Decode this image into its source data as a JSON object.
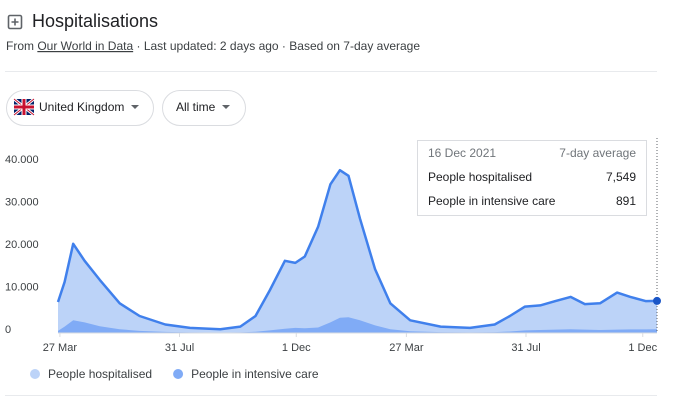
{
  "header": {
    "title": "Hospitalisations",
    "from": "From",
    "source": "Our World in Data",
    "meta": "· Last updated: 2 days ago · Based on 7-day average"
  },
  "controls": {
    "region": "United Kingdom",
    "range": "All time"
  },
  "tooltip": {
    "date": "16 Dec 2021",
    "basis": "7-day average",
    "rows": [
      {
        "label": "People hospitalised",
        "value": "7,549"
      },
      {
        "label": "People in intensive care",
        "value": "891"
      }
    ]
  },
  "chart_data": {
    "type": "area",
    "x": [
      0,
      7,
      16,
      28,
      44,
      65,
      86,
      113,
      139,
      171,
      192,
      208,
      223,
      239,
      250,
      260,
      274,
      287,
      297,
      306,
      318,
      334,
      350,
      371,
      403,
      434,
      460,
      476,
      492,
      508,
      524,
      540,
      555,
      571,
      589,
      603,
      619,
      631
    ],
    "xlim": [
      0,
      631
    ],
    "xticks": [
      {
        "value": 2,
        "label": "27 Mar"
      },
      {
        "value": 128,
        "label": "31 Jul"
      },
      {
        "value": 251,
        "label": "1 Dec"
      },
      {
        "value": 367,
        "label": "27 Mar"
      },
      {
        "value": 493,
        "label": "31 Jul"
      },
      {
        "value": 616,
        "label": "1 Dec"
      }
    ],
    "ylim": [
      0,
      40000
    ],
    "yticks": [
      0,
      {
        "value": 10000,
        "label": "10.000"
      },
      {
        "value": 20000,
        "label": "20.000"
      },
      {
        "value": 30000,
        "label": "30.000"
      },
      {
        "value": 40000,
        "label": "40.000"
      }
    ],
    "grid": false,
    "series": [
      {
        "name": "People hospitalised",
        "color": "#bcd3f8",
        "line_color": "#4080ec",
        "values": [
          7300,
          12000,
          21000,
          17000,
          12500,
          7000,
          4000,
          2000,
          1200,
          900,
          1500,
          4000,
          10000,
          17000,
          16500,
          18000,
          25000,
          35000,
          38300,
          37000,
          27000,
          15000,
          7000,
          3000,
          1500,
          1200,
          2000,
          4000,
          6200,
          6500,
          7500,
          8500,
          6800,
          7000,
          9500,
          8500,
          7500,
          7549
        ]
      },
      {
        "name": "People in intensive care",
        "color": "#80abf6",
        "values": [
          500,
          1500,
          3000,
          2500,
          1600,
          900,
          500,
          250,
          150,
          100,
          150,
          300,
          600,
          1000,
          1200,
          1100,
          1300,
          2500,
          3600,
          3700,
          3000,
          1800,
          900,
          400,
          200,
          150,
          200,
          350,
          600,
          700,
          800,
          900,
          800,
          700,
          800,
          850,
          850,
          891
        ]
      }
    ]
  }
}
